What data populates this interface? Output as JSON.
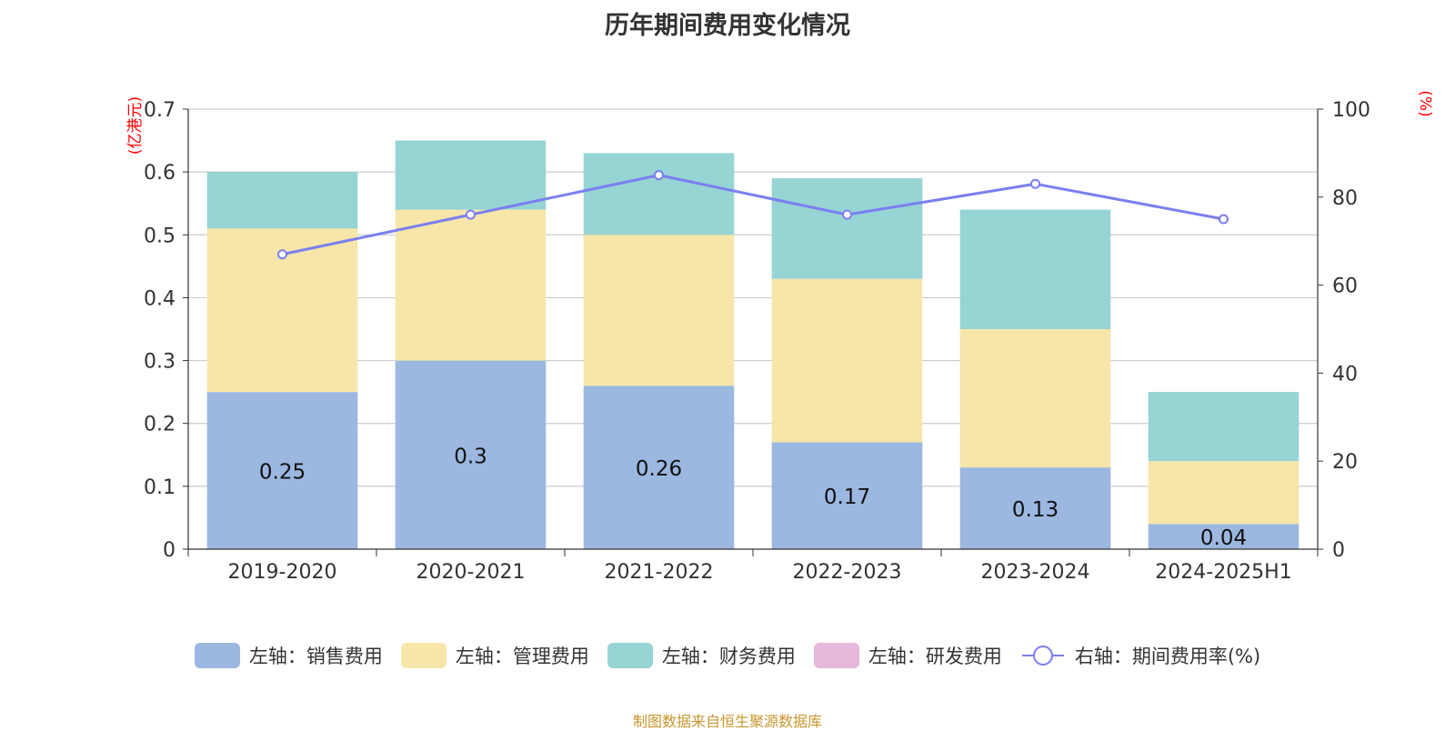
{
  "title": "历年期间费用变化情况",
  "source": "制图数据来自恒生聚源数据库",
  "colors": {
    "sales": "#9cb7e0",
    "admin": "#f7e6a9",
    "finance": "#97d4d4",
    "rnd": "#e6b8da",
    "rate": "#7b7ff0",
    "unit": "#ff0000"
  },
  "legend": [
    {
      "label": "左轴：销售费用",
      "color": "#9cb7e0",
      "kind": "bar"
    },
    {
      "label": "左轴：管理费用",
      "color": "#f7e6a9",
      "kind": "bar"
    },
    {
      "label": "左轴：财务费用",
      "color": "#97d4d4",
      "kind": "bar"
    },
    {
      "label": "左轴：研发费用",
      "color": "#e6b8da",
      "kind": "bar"
    },
    {
      "label": "右轴：期间费用率(%)",
      "color": "#7b7ff0",
      "kind": "line"
    }
  ],
  "chart_data": {
    "type": "bar",
    "stacked": true,
    "categories": [
      "2019-2020",
      "2020-2021",
      "2021-2022",
      "2022-2023",
      "2023-2024",
      "2024-2025H1"
    ],
    "series": [
      {
        "name": "左轴：销售费用",
        "axis": "left",
        "values": [
          0.25,
          0.3,
          0.26,
          0.17,
          0.13,
          0.04
        ],
        "data_labels": [
          "0.25",
          "0.3",
          "0.26",
          "0.17",
          "0.13",
          "0.04"
        ]
      },
      {
        "name": "左轴：管理费用",
        "axis": "left",
        "values": [
          0.26,
          0.24,
          0.24,
          0.26,
          0.22,
          0.1
        ]
      },
      {
        "name": "左轴：财务费用",
        "axis": "left",
        "values": [
          0.09,
          0.11,
          0.13,
          0.16,
          0.19,
          0.11
        ]
      },
      {
        "name": "左轴：研发费用",
        "axis": "left",
        "values": [
          0,
          0,
          0,
          0,
          0,
          0
        ]
      },
      {
        "name": "右轴：期间费用率(%)",
        "axis": "right",
        "type": "line",
        "values": [
          67,
          76,
          85,
          76,
          83,
          75
        ]
      }
    ],
    "y_left": {
      "unit": "(亿港元)",
      "ylim": [
        0,
        0.7
      ],
      "ticks": [
        "0",
        "0.1",
        "0.2",
        "0.3",
        "0.4",
        "0.5",
        "0.6",
        "0.7"
      ]
    },
    "y_right": {
      "unit": "(%)",
      "ylim": [
        0,
        100
      ],
      "ticks": [
        "0",
        "20",
        "40",
        "60",
        "80",
        "100"
      ]
    },
    "grid": true,
    "legend_position": "bottom"
  }
}
